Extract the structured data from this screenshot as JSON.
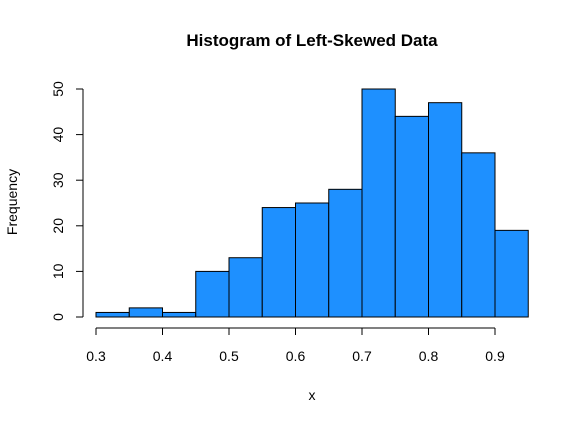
{
  "chart_data": {
    "type": "bar",
    "title": "Histogram of Left-Skewed Data",
    "xlabel": "x",
    "ylabel": "Frequency",
    "bins": [
      {
        "start": 0.3,
        "end": 0.35,
        "count": 1
      },
      {
        "start": 0.35,
        "end": 0.4,
        "count": 2
      },
      {
        "start": 0.4,
        "end": 0.45,
        "count": 1
      },
      {
        "start": 0.45,
        "end": 0.5,
        "count": 10
      },
      {
        "start": 0.5,
        "end": 0.55,
        "count": 13
      },
      {
        "start": 0.55,
        "end": 0.6,
        "count": 24
      },
      {
        "start": 0.6,
        "end": 0.65,
        "count": 25
      },
      {
        "start": 0.65,
        "end": 0.7,
        "count": 28
      },
      {
        "start": 0.7,
        "end": 0.75,
        "count": 50
      },
      {
        "start": 0.75,
        "end": 0.8,
        "count": 44
      },
      {
        "start": 0.8,
        "end": 0.85,
        "count": 47
      },
      {
        "start": 0.85,
        "end": 0.9,
        "count": 36
      },
      {
        "start": 0.9,
        "end": 0.95,
        "count": 19
      }
    ],
    "xticks": [
      "0.3",
      "0.4",
      "0.5",
      "0.6",
      "0.7",
      "0.8",
      "0.9"
    ],
    "yticks": [
      "0",
      "10",
      "20",
      "30",
      "40",
      "50"
    ],
    "xlim": [
      0.3,
      0.95
    ],
    "ylim": [
      0,
      50
    ],
    "bar_color": "#1e90ff",
    "grid": false,
    "legend": "none"
  }
}
